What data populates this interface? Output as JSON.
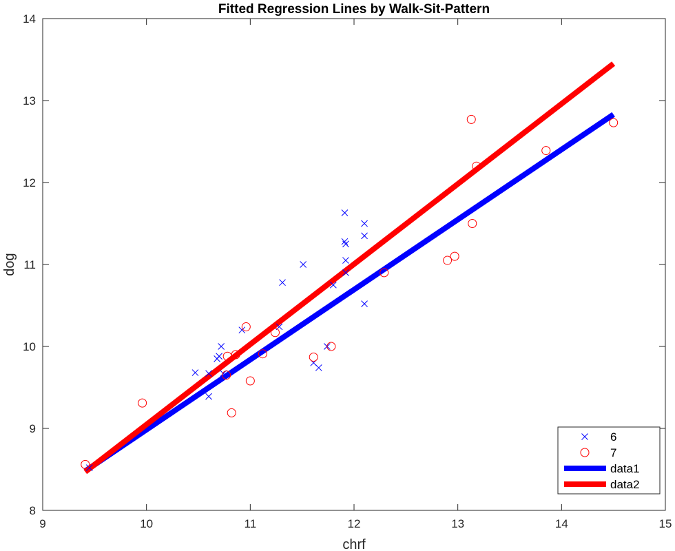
{
  "chart_data": {
    "type": "scatter",
    "title": "Fitted Regression Lines by Walk-Sit-Pattern",
    "xlabel": "chrf",
    "ylabel": "dog",
    "xlim": [
      9,
      15
    ],
    "ylim": [
      8,
      14
    ],
    "xticks": [
      "9",
      "10",
      "11",
      "12",
      "13",
      "14",
      "15"
    ],
    "yticks": [
      "8",
      "9",
      "10",
      "11",
      "12",
      "13",
      "14"
    ],
    "grid": false,
    "legend_position": "bottom-right",
    "series": [
      {
        "name": "6",
        "kind": "scatter",
        "marker": "x",
        "color": "#0000ff",
        "points": [
          [
            10.47,
            9.68
          ],
          [
            10.6,
            9.67
          ],
          [
            10.6,
            9.39
          ],
          [
            10.68,
            9.85
          ],
          [
            10.7,
            9.88
          ],
          [
            10.72,
            10.0
          ],
          [
            10.74,
            9.67
          ],
          [
            10.92,
            10.2
          ],
          [
            11.28,
            10.24
          ],
          [
            11.31,
            10.78
          ],
          [
            11.51,
            11.0
          ],
          [
            11.61,
            9.8
          ],
          [
            11.66,
            9.74
          ],
          [
            11.74,
            10.0
          ],
          [
            11.8,
            10.75
          ],
          [
            11.91,
            11.63
          ],
          [
            11.91,
            11.28
          ],
          [
            11.92,
            11.25
          ],
          [
            11.92,
            11.05
          ],
          [
            11.92,
            10.9
          ],
          [
            12.1,
            11.5
          ],
          [
            12.1,
            11.35
          ],
          [
            12.1,
            10.52
          ],
          [
            9.45,
            8.52
          ]
        ]
      },
      {
        "name": "7",
        "kind": "scatter",
        "marker": "o",
        "color": "#ff0000",
        "points": [
          [
            9.41,
            8.56
          ],
          [
            9.96,
            9.31
          ],
          [
            10.77,
            9.65
          ],
          [
            10.78,
            9.88
          ],
          [
            10.82,
            9.19
          ],
          [
            10.86,
            9.9
          ],
          [
            10.96,
            10.24
          ],
          [
            11.0,
            9.58
          ],
          [
            11.12,
            9.91
          ],
          [
            11.24,
            10.17
          ],
          [
            11.61,
            9.87
          ],
          [
            11.78,
            10.0
          ],
          [
            12.29,
            10.9
          ],
          [
            12.9,
            11.05
          ],
          [
            12.97,
            11.1
          ],
          [
            13.13,
            12.77
          ],
          [
            13.14,
            11.5
          ],
          [
            13.18,
            12.2
          ],
          [
            13.85,
            12.39
          ],
          [
            14.5,
            12.73
          ]
        ]
      },
      {
        "name": "data1",
        "kind": "line",
        "color": "#0000ff",
        "points": [
          [
            9.41,
            8.48
          ],
          [
            14.5,
            12.83
          ]
        ]
      },
      {
        "name": "data2",
        "kind": "line",
        "color": "#ff0000",
        "points": [
          [
            9.41,
            8.47
          ],
          [
            14.5,
            13.45
          ]
        ]
      }
    ]
  }
}
